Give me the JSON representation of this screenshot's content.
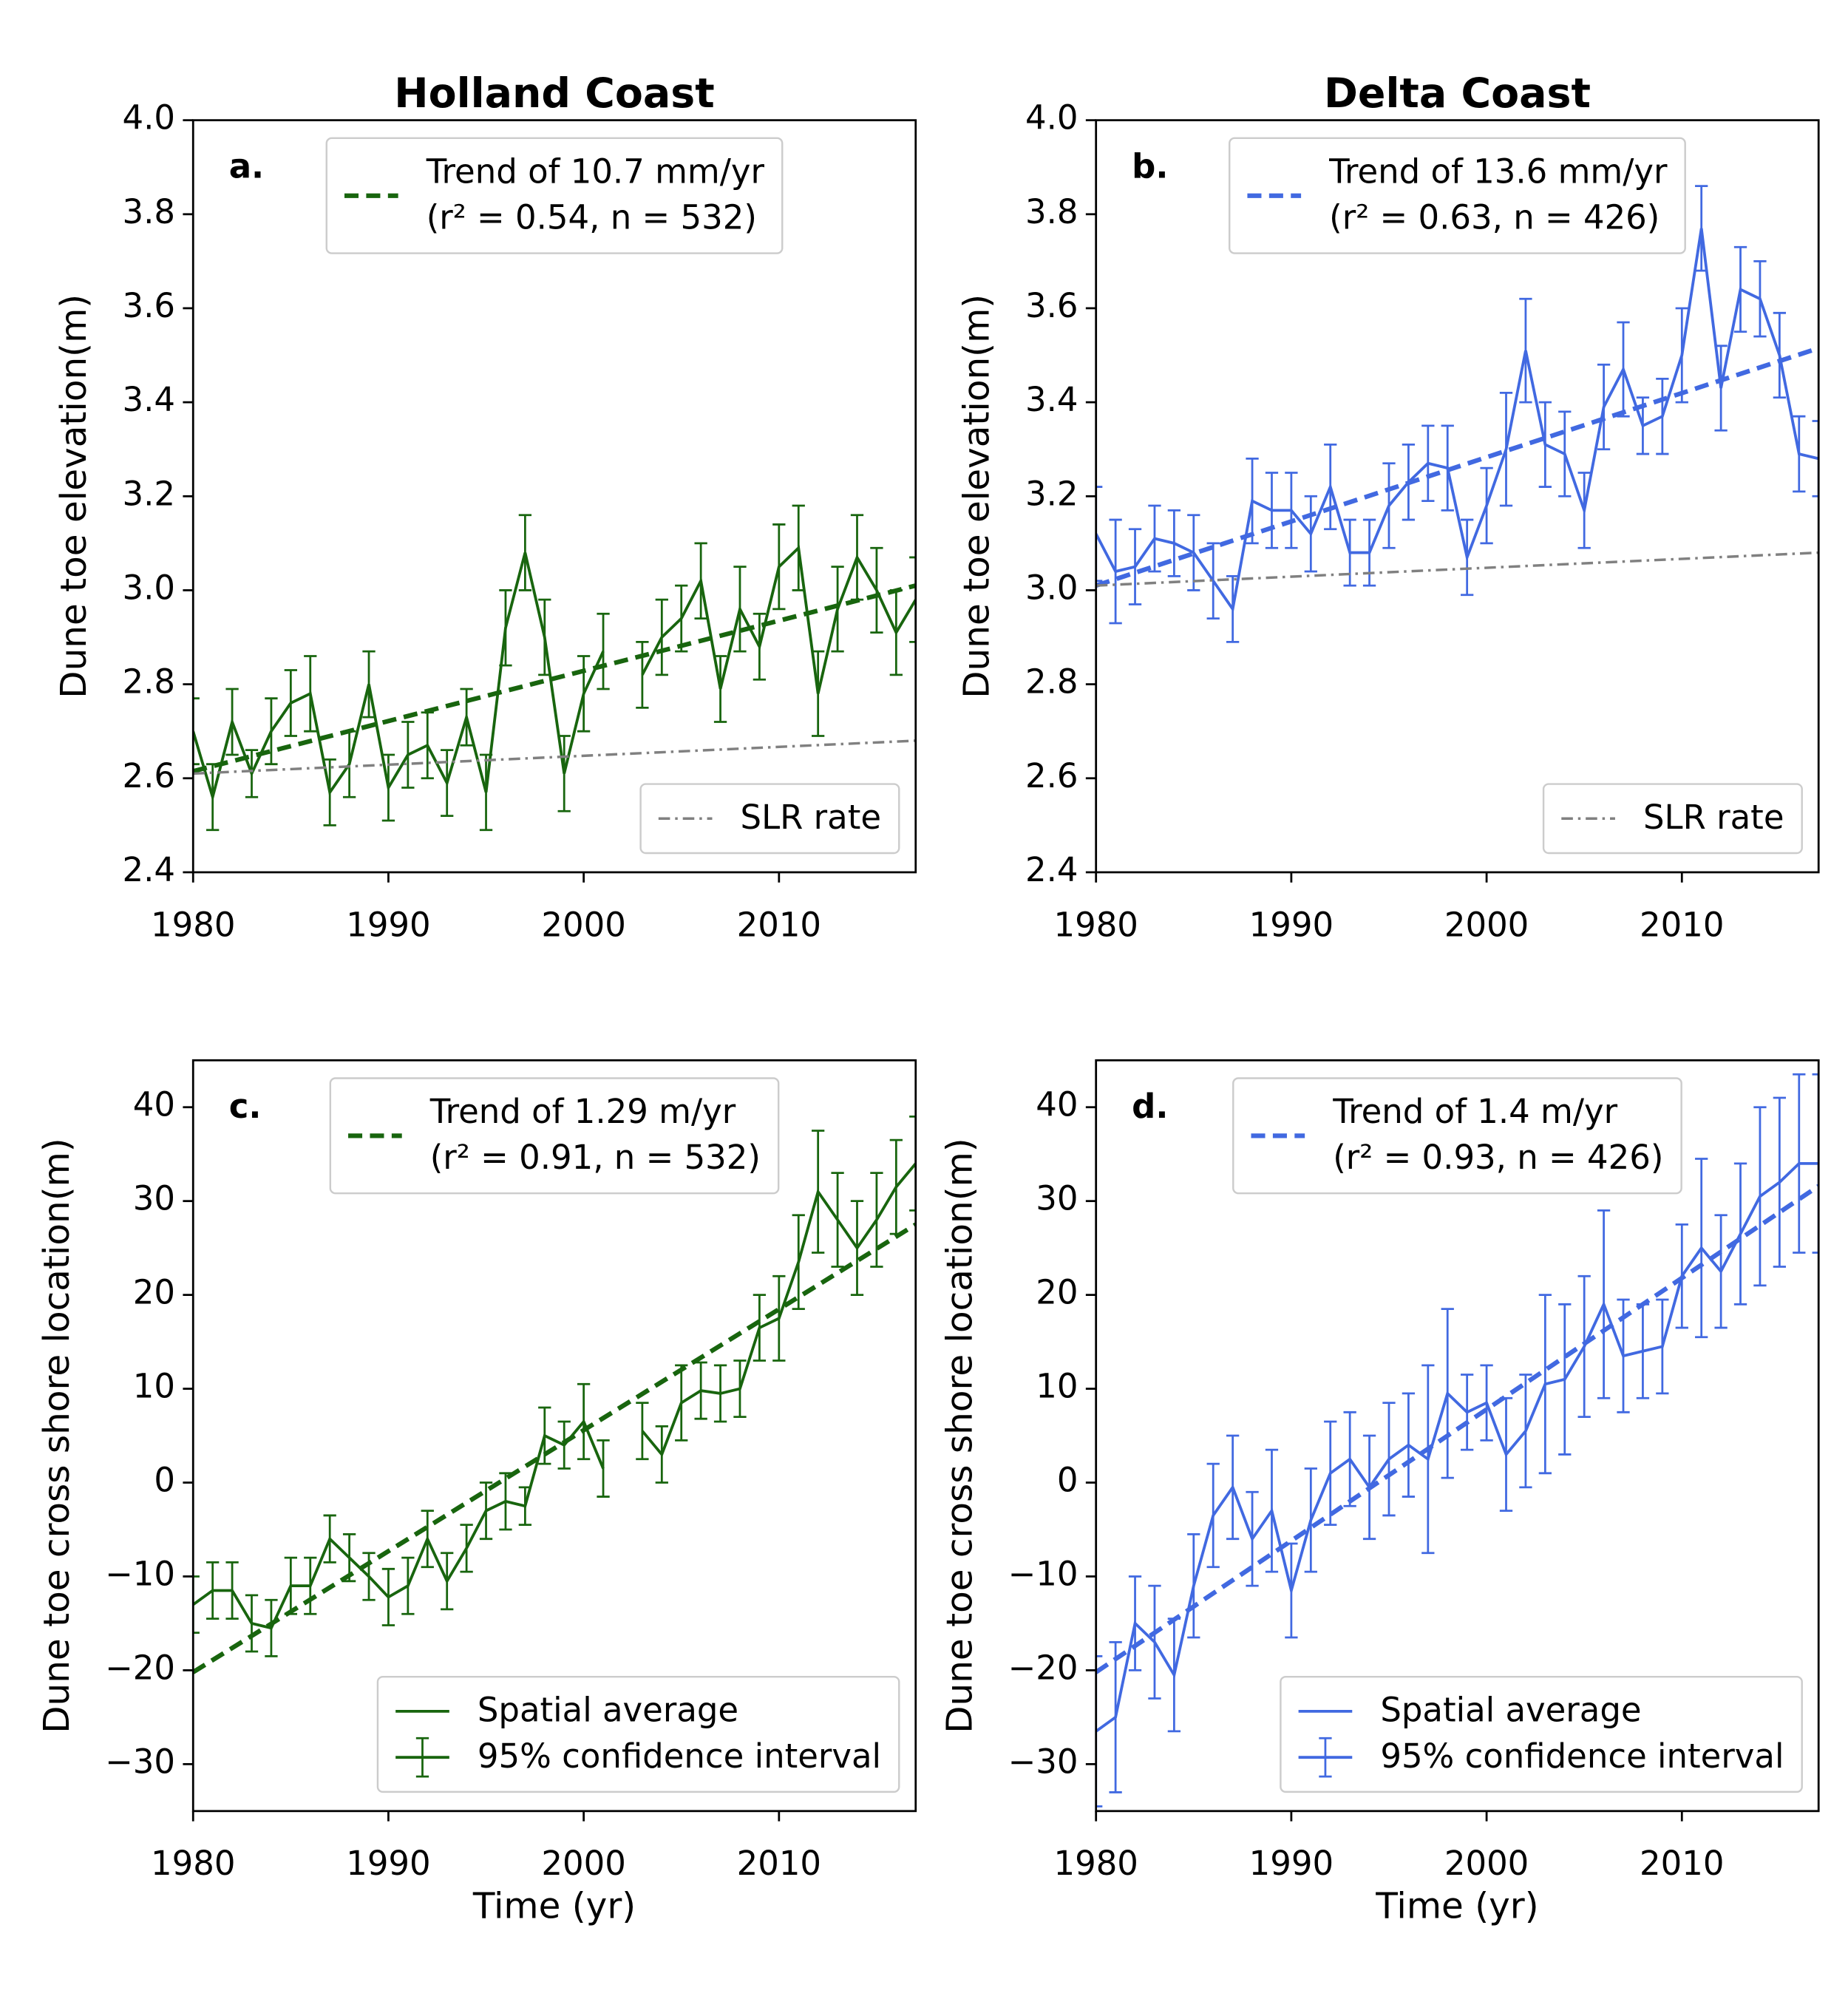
{
  "chart_data": [
    {
      "type": "line",
      "title": "Holland Coast",
      "panel_label": "a.",
      "ylabel": "Dune toe elevation(m)",
      "xlim": [
        1980,
        2017
      ],
      "xticks": [
        1980,
        1990,
        2000,
        2010
      ],
      "ylim": [
        2.4,
        4.0
      ],
      "yticks": [
        2.4,
        2.6,
        2.8,
        {
          "value": 3,
          "label": "3.0"
        },
        3.2,
        3.4,
        3.6,
        3.8,
        {
          "value": 4,
          "label": "4.0"
        }
      ],
      "series": [
        {
          "color": "#18650e",
          "style": "solid",
          "x": [
            1980,
            1981,
            1982,
            1983,
            1984,
            1985,
            1986,
            1987,
            1988,
            1989,
            1990,
            1991,
            1992,
            1993,
            1994,
            1995,
            1996,
            1997,
            1998,
            1999,
            2000,
            2001,
            2002,
            2003,
            2004,
            2005,
            2006,
            2007,
            2008,
            2009,
            2010,
            2011,
            2012,
            2013,
            2014,
            2015,
            2016,
            2017
          ],
          "values": [
            2.7,
            2.56,
            2.72,
            2.61,
            2.7,
            2.76,
            2.78,
            2.57,
            2.63,
            2.8,
            2.58,
            2.65,
            2.67,
            2.59,
            2.73,
            2.57,
            2.92,
            3.08,
            2.9,
            2.61,
            2.78,
            2.87,
            null,
            2.82,
            2.9,
            2.94,
            3.02,
            2.79,
            2.96,
            2.88,
            3.05,
            3.09,
            2.78,
            2.96,
            3.07,
            3.0,
            2.91,
            2.98
          ],
          "errors": [
            0.07,
            0.07,
            0.07,
            0.05,
            0.07,
            0.07,
            0.08,
            0.07,
            0.07,
            0.07,
            0.07,
            0.07,
            0.07,
            0.07,
            0.06,
            0.08,
            0.08,
            0.08,
            0.08,
            0.08,
            0.08,
            0.08,
            null,
            0.07,
            0.08,
            0.07,
            0.08,
            0.07,
            0.09,
            0.07,
            0.09,
            0.09,
            0.09,
            0.09,
            0.09,
            0.09,
            0.09,
            0.09
          ]
        },
        {
          "name": "Trend of 10.7 mm/yr",
          "legend_detail": "(r² = 0.54, n = 532)",
          "color": "#18650e",
          "style": "dashed",
          "x": [
            1980,
            2017
          ],
          "values": [
            2.615,
            3.01
          ]
        },
        {
          "name": "SLR rate",
          "color": "#808080",
          "style": "dashdot",
          "x": [
            1980,
            2017
          ],
          "values": [
            2.61,
            2.68
          ]
        }
      ],
      "legends": [
        {
          "loc": "upper center",
          "items": [
            {
              "series": 1
            }
          ]
        },
        {
          "loc": "lower right",
          "items": [
            {
              "series": 2
            }
          ]
        }
      ]
    },
    {
      "type": "line",
      "title": "Delta Coast",
      "panel_label": "b.",
      "ylabel": "Dune toe elevation(m)",
      "xlim": [
        1980,
        2017
      ],
      "xticks": [
        1980,
        1990,
        2000,
        2010
      ],
      "ylim": [
        2.4,
        4.0
      ],
      "yticks": [
        2.4,
        2.6,
        2.8,
        {
          "value": 3,
          "label": "3.0"
        },
        3.2,
        3.4,
        3.6,
        3.8,
        {
          "value": 4,
          "label": "4.0"
        }
      ],
      "series": [
        {
          "color": "#4169e1",
          "style": "solid",
          "x": [
            1980,
            1981,
            1982,
            1983,
            1984,
            1985,
            1986,
            1987,
            1988,
            1989,
            1990,
            1991,
            1992,
            1993,
            1994,
            1995,
            1996,
            1997,
            1998,
            1999,
            2000,
            2001,
            2002,
            2003,
            2004,
            2005,
            2006,
            2007,
            2008,
            2009,
            2010,
            2011,
            2012,
            2013,
            2014,
            2015,
            2016,
            2017
          ],
          "values": [
            3.12,
            3.04,
            3.05,
            3.11,
            3.1,
            3.08,
            3.02,
            2.96,
            3.19,
            3.17,
            3.17,
            3.12,
            3.22,
            3.08,
            3.08,
            3.18,
            3.23,
            3.27,
            3.26,
            3.07,
            3.18,
            3.3,
            3.51,
            3.31,
            3.29,
            3.17,
            3.39,
            3.47,
            3.35,
            3.37,
            3.5,
            3.77,
            3.43,
            3.64,
            3.62,
            3.5,
            3.29,
            3.28
          ],
          "errors": [
            0.1,
            0.11,
            0.08,
            0.07,
            0.07,
            0.08,
            0.08,
            0.07,
            0.09,
            0.08,
            0.08,
            0.08,
            0.09,
            0.07,
            0.07,
            0.09,
            0.08,
            0.08,
            0.09,
            0.08,
            0.08,
            0.12,
            0.11,
            0.09,
            0.09,
            0.08,
            0.09,
            0.1,
            0.06,
            0.08,
            0.1,
            0.09,
            0.09,
            0.09,
            0.08,
            0.09,
            0.08,
            0.08
          ]
        },
        {
          "name": "Trend of 13.6 mm/yr",
          "legend_detail": "(r² = 0.63, n = 426)",
          "color": "#4169e1",
          "style": "dashed",
          "x": [
            1980,
            2017
          ],
          "values": [
            3.01,
            3.515
          ]
        },
        {
          "name": "SLR rate",
          "color": "#808080",
          "style": "dashdot",
          "x": [
            1980,
            2017
          ],
          "values": [
            3.01,
            3.08
          ]
        }
      ],
      "legends": [
        {
          "loc": "upper center",
          "items": [
            {
              "series": 1
            }
          ]
        },
        {
          "loc": "lower right",
          "items": [
            {
              "series": 2
            }
          ]
        }
      ]
    },
    {
      "type": "line",
      "panel_label": "c.",
      "ylabel": "Dune toe cross shore location(m)",
      "xlabel": "Time (yr)",
      "xlim": [
        1980,
        2017
      ],
      "xticks": [
        1980,
        1990,
        2000,
        2010
      ],
      "ylim": [
        -35,
        45
      ],
      "yticks": [
        {
          "value": -30,
          "label": "−30"
        },
        {
          "value": -20,
          "label": "−20"
        },
        {
          "value": -10,
          "label": "−10"
        },
        0,
        10,
        20,
        30,
        40
      ],
      "series": [
        {
          "name": "Spatial average",
          "error_name": "95% confidence interval",
          "color": "#18650e",
          "style": "solid",
          "x": [
            1980,
            1981,
            1982,
            1983,
            1984,
            1985,
            1986,
            1987,
            1988,
            1989,
            1990,
            1991,
            1992,
            1993,
            1994,
            1995,
            1996,
            1997,
            1998,
            1999,
            2000,
            2001,
            2002,
            2003,
            2004,
            2005,
            2006,
            2007,
            2008,
            2009,
            2010,
            2011,
            2012,
            2013,
            2014,
            2015,
            2016,
            2017
          ],
          "values": [
            -13,
            -11.5,
            -11.5,
            -15,
            -15.5,
            -11,
            -11,
            -6,
            -8,
            -10,
            -12.2,
            -11,
            -6,
            -10.5,
            -7,
            -3,
            -2,
            -2.5,
            5,
            4,
            6.5,
            1.5,
            null,
            5.5,
            3,
            8.5,
            9.8,
            9.5,
            10,
            16.5,
            17.5,
            23.5,
            31,
            28,
            25,
            28,
            31.5,
            34
          ],
          "errors": [
            3,
            3,
            3,
            3,
            3,
            3,
            3,
            2.5,
            2.5,
            2.5,
            3,
            3,
            3,
            3,
            2.5,
            3,
            3,
            2,
            3,
            2.5,
            4,
            3,
            null,
            3,
            3,
            4,
            3,
            3,
            3,
            3.5,
            4.5,
            5,
            6.5,
            5,
            5,
            5,
            5,
            5
          ]
        },
        {
          "name": "Trend of 1.29 m/yr",
          "legend_detail": "(r² = 0.91, n = 532)",
          "color": "#18650e",
          "style": "dashed",
          "x": [
            1980,
            2017
          ],
          "values": [
            -20.2,
            27.5
          ]
        }
      ],
      "legends": [
        {
          "loc": "upper center",
          "items": [
            {
              "series": 1
            }
          ]
        },
        {
          "loc": "lower right",
          "items": [
            {
              "series": 0
            },
            {
              "series": 0,
              "errors": true
            }
          ]
        }
      ]
    },
    {
      "type": "line",
      "panel_label": "d.",
      "ylabel": "Dune toe cross shore location(m)",
      "xlabel": "Time (yr)",
      "xlim": [
        1980,
        2017
      ],
      "xticks": [
        1980,
        1990,
        2000,
        2010
      ],
      "ylim": [
        -35,
        45
      ],
      "yticks": [
        {
          "value": -30,
          "label": "−30"
        },
        {
          "value": -20,
          "label": "−20"
        },
        {
          "value": -10,
          "label": "−10"
        },
        0,
        10,
        20,
        30,
        40
      ],
      "series": [
        {
          "name": "Spatial average",
          "error_name": "95% confidence interval",
          "color": "#4169e1",
          "style": "solid",
          "x": [
            1980,
            1981,
            1982,
            1983,
            1984,
            1985,
            1986,
            1987,
            1988,
            1989,
            1990,
            1991,
            1992,
            1993,
            1994,
            1995,
            1996,
            1997,
            1998,
            1999,
            2000,
            2001,
            2002,
            2003,
            2004,
            2005,
            2006,
            2007,
            2008,
            2009,
            2010,
            2011,
            2012,
            2013,
            2014,
            2015,
            2016,
            2017
          ],
          "values": [
            -26.5,
            -25,
            -15,
            -17,
            -20.5,
            -11,
            -3.5,
            -0.5,
            -6,
            -3,
            -11.5,
            -4,
            1,
            2.5,
            -0.5,
            2.5,
            4,
            2.5,
            9.5,
            7.5,
            8.5,
            3,
            5.5,
            10.5,
            11,
            14.5,
            19,
            13.5,
            14,
            14.5,
            22,
            25,
            22.5,
            26.5,
            30.5,
            32,
            34,
            34
          ],
          "errors": [
            8,
            8,
            5,
            6,
            6,
            5.5,
            5.5,
            5.5,
            5,
            6.5,
            5,
            5.5,
            5.5,
            5,
            5.5,
            6,
            5.5,
            10,
            9,
            4,
            4,
            6,
            6,
            9.5,
            8,
            7.5,
            10,
            6,
            5,
            5,
            5.5,
            9.5,
            6,
            7.5,
            9.5,
            9,
            9.5,
            9.5
          ]
        },
        {
          "name": "Trend of 1.4 m/yr",
          "legend_detail": "(r² = 0.93, n = 426)",
          "color": "#4169e1",
          "style": "dashed",
          "x": [
            1980,
            2017
          ],
          "values": [
            -20.2,
            31.6
          ]
        }
      ],
      "legends": [
        {
          "loc": "upper center",
          "items": [
            {
              "series": 1
            }
          ]
        },
        {
          "loc": "lower right",
          "items": [
            {
              "series": 0
            },
            {
              "series": 0,
              "errors": true
            }
          ]
        }
      ]
    }
  ]
}
